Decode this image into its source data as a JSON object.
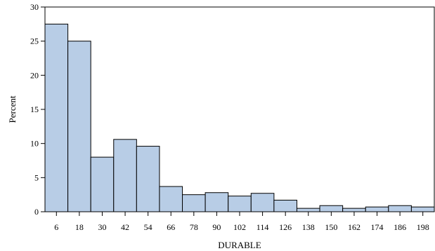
{
  "chart_data": {
    "type": "bar",
    "title": "",
    "xlabel": "DURABLE",
    "ylabel": "Percent",
    "categories": [
      "6",
      "18",
      "30",
      "42",
      "54",
      "66",
      "78",
      "90",
      "102",
      "114",
      "126",
      "138",
      "150",
      "162",
      "174",
      "186",
      "198"
    ],
    "values": [
      27.5,
      25.0,
      8.0,
      10.6,
      9.6,
      3.7,
      2.5,
      2.8,
      2.3,
      2.7,
      1.7,
      0.5,
      0.9,
      0.5,
      0.7,
      0.9,
      0.7
    ],
    "ylim": [
      0,
      30
    ],
    "yticks": [
      "0",
      "5",
      "10",
      "15",
      "20",
      "25",
      "30"
    ],
    "grid": false,
    "colors": {
      "bar_fill": "#b8cde6",
      "bar_stroke": "#000000",
      "axis": "#000000"
    }
  }
}
